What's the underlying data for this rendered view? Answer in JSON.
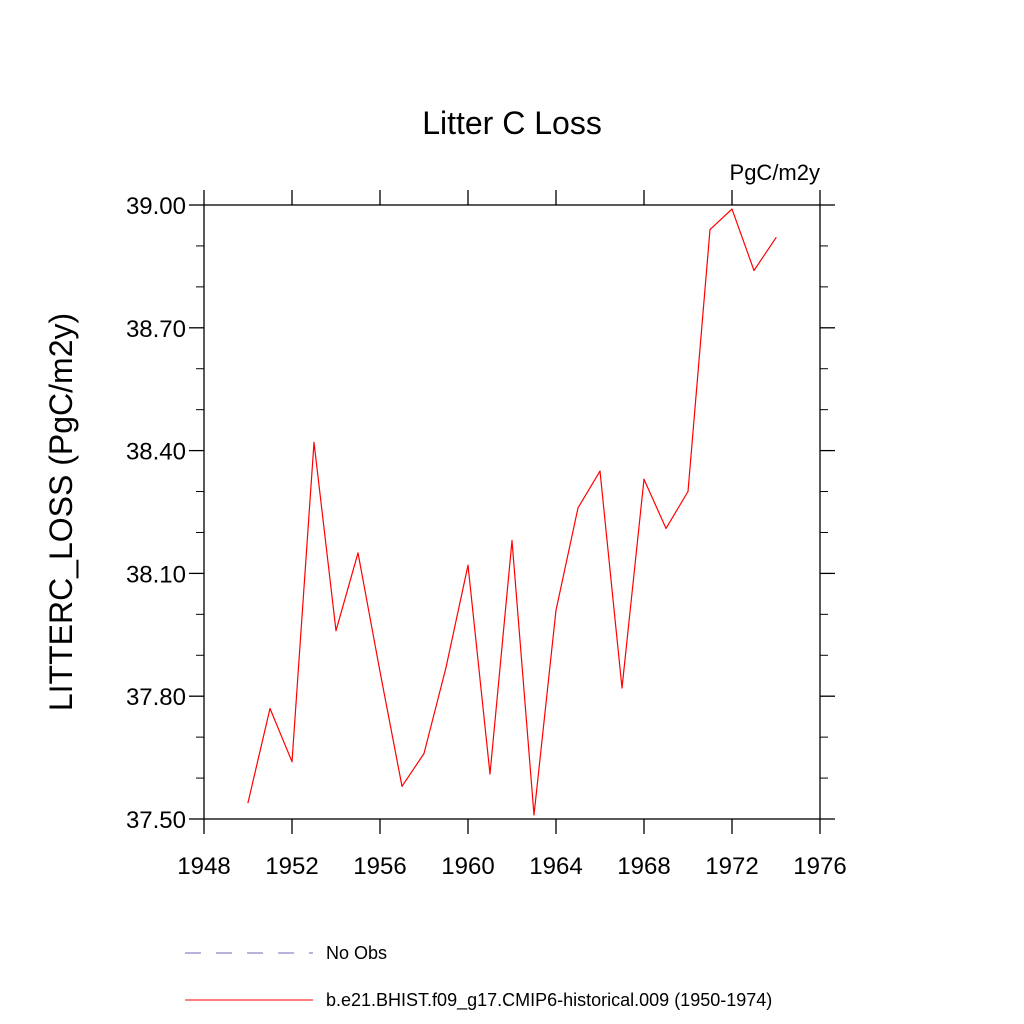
{
  "chart_data": {
    "type": "line",
    "title": "Litter C Loss",
    "units_label": "PgC/m2y",
    "ylabel": "LITTERC_LOSS  (PgC/m2y)",
    "xlabel": "",
    "xlim": [
      1948,
      1976
    ],
    "ylim": [
      37.5,
      39.0
    ],
    "x_ticks": [
      1948,
      1952,
      1956,
      1960,
      1964,
      1968,
      1972,
      1976
    ],
    "x_tick_labels": [
      "1948",
      "1952",
      "1956",
      "1960",
      "1964",
      "1968",
      "1972",
      "1976"
    ],
    "y_ticks": [
      37.5,
      37.8,
      38.1,
      38.4,
      38.7,
      39.0
    ],
    "y_tick_labels": [
      "37.50",
      "37.80",
      "38.10",
      "38.40",
      "38.70",
      "39.00"
    ],
    "grid": false,
    "legend_position": "bottom",
    "series": [
      {
        "name": "b.e21.BHIST.f09_g17.CMIP6-historical.009 (1950-1974)",
        "color": "#ff0000",
        "style": "solid",
        "x": [
          1950,
          1951,
          1952,
          1953,
          1954,
          1955,
          1956,
          1957,
          1958,
          1959,
          1960,
          1961,
          1962,
          1963,
          1964,
          1965,
          1966,
          1967,
          1968,
          1969,
          1970,
          1971,
          1972,
          1973,
          1974
        ],
        "y": [
          37.54,
          37.77,
          37.64,
          38.42,
          37.96,
          38.15,
          37.86,
          37.58,
          37.66,
          37.87,
          38.12,
          37.61,
          38.18,
          37.51,
          38.01,
          38.26,
          38.35,
          37.82,
          38.33,
          38.21,
          38.3,
          38.94,
          38.99,
          38.84,
          38.92
        ]
      }
    ],
    "legend": [
      {
        "label": "No Obs",
        "color": "#6b6bb8",
        "style": "dashed"
      },
      {
        "label": "b.e21.BHIST.f09_g17.CMIP6-historical.009 (1950-1974)",
        "color": "#ff0000",
        "style": "solid"
      }
    ]
  }
}
